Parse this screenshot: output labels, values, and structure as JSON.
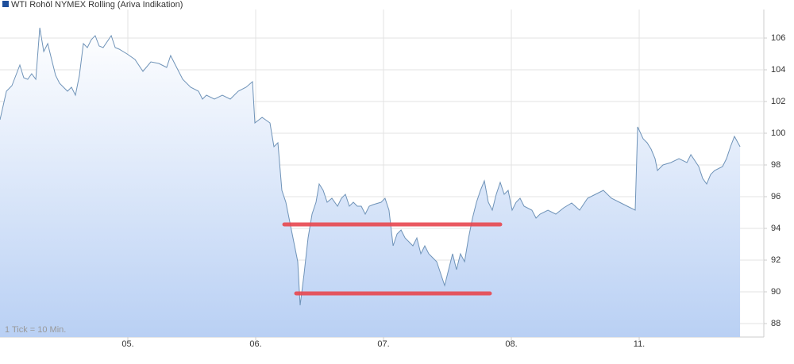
{
  "chart_data": {
    "type": "area",
    "series": [
      {
        "name": "WTI Rohöl NYMEX Rolling (Ariva Indikation)",
        "color": "#6f93b8",
        "legend_color": "#1f4f9c",
        "values": [
          100.85,
          102.65,
          103.0,
          103.65,
          104.3,
          103.5,
          103.4,
          103.75,
          103.4,
          106.65,
          105.15,
          105.65,
          104.65,
          103.65,
          103.15,
          102.9,
          102.65,
          102.9,
          102.4,
          103.65,
          105.65,
          105.4,
          105.9,
          106.15,
          105.5,
          105.4,
          106.15,
          105.4,
          105.3,
          105.0,
          104.65,
          103.9,
          104.5,
          104.4,
          104.15,
          104.9,
          104.4,
          103.4,
          102.9,
          102.65,
          102.15,
          102.4,
          102.15,
          102.4,
          102.15,
          102.65,
          102.9,
          103.25,
          100.65,
          101.0,
          100.65,
          99.15,
          99.4,
          96.4,
          95.65,
          94.4,
          93.15,
          91.9,
          89.15,
          91.15,
          93.4,
          94.9,
          95.65,
          96.8,
          96.4,
          95.65,
          95.9,
          95.4,
          95.9,
          96.15,
          95.4,
          95.65,
          95.4,
          95.4,
          94.9,
          95.4,
          95.5,
          95.65,
          95.9,
          95.15,
          92.9,
          93.65,
          93.9,
          93.4,
          93.15,
          92.9,
          93.4,
          92.4,
          92.9,
          92.4,
          92.15,
          91.9,
          91.15,
          90.4,
          91.4,
          92.4,
          91.4,
          92.4,
          91.9,
          93.4,
          94.65,
          95.65,
          96.4,
          97.0,
          95.65,
          95.15,
          96.15,
          96.9,
          96.15,
          96.4,
          95.15,
          95.65,
          95.9,
          95.4,
          95.15,
          94.65,
          94.9,
          95.15,
          94.9,
          95.3,
          95.6,
          95.15,
          95.9,
          96.15,
          96.4,
          95.9,
          95.65,
          95.4,
          95.15,
          100.4,
          99.65,
          99.4,
          99.0,
          98.4,
          97.65,
          98.0,
          98.15,
          98.4,
          98.15,
          98.65,
          97.9,
          97.15,
          96.8,
          97.4,
          97.65,
          97.9,
          98.4,
          99.15,
          99.8,
          99.15
        ]
      }
    ],
    "x": [
      0,
      0.05,
      0.093,
      0.124,
      0.155,
      0.186,
      0.217,
      0.248,
      0.28,
      0.311,
      0.342,
      0.373,
      0.404,
      0.435,
      0.466,
      0.497,
      0.528,
      0.559,
      0.59,
      0.621,
      0.652,
      0.683,
      0.714,
      0.745,
      0.776,
      0.807,
      0.87,
      0.901,
      0.932,
      0.994,
      1.056,
      1.118,
      1.18,
      1.242,
      1.304,
      1.335,
      1.366,
      1.429,
      1.491,
      1.553,
      1.584,
      1.615,
      1.677,
      1.739,
      1.801,
      1.863,
      1.925,
      1.975,
      1.994,
      2.05,
      2.112,
      2.143,
      2.174,
      2.205,
      2.236,
      2.267,
      2.298,
      2.329,
      2.348,
      2.379,
      2.41,
      2.441,
      2.472,
      2.497,
      2.528,
      2.559,
      2.596,
      2.64,
      2.671,
      2.702,
      2.733,
      2.764,
      2.795,
      2.826,
      2.857,
      2.888,
      2.919,
      2.981,
      3.012,
      3.043,
      3.075,
      3.106,
      3.137,
      3.168,
      3.199,
      3.23,
      3.261,
      3.292,
      3.323,
      3.354,
      3.385,
      3.416,
      3.447,
      3.478,
      3.509,
      3.54,
      3.571,
      3.602,
      3.634,
      3.665,
      3.696,
      3.727,
      3.758,
      3.789,
      3.82,
      3.851,
      3.882,
      3.913,
      3.944,
      3.975,
      4.006,
      4.037,
      4.068,
      4.099,
      4.161,
      4.193,
      4.224,
      4.286,
      4.348,
      4.41,
      4.472,
      4.534,
      4.596,
      4.658,
      4.72,
      4.783,
      4.845,
      4.907,
      4.969,
      4.988,
      5.031,
      5.062,
      5.093,
      5.124,
      5.143,
      5.186,
      5.248,
      5.311,
      5.373,
      5.404,
      5.466,
      5.497,
      5.528,
      5.559,
      5.59,
      5.652,
      5.683,
      5.714,
      5.745,
      5.789
    ],
    "xlim": [
      0,
      5.975
    ],
    "xticks": [
      {
        "value": 1,
        "label": "05."
      },
      {
        "value": 2,
        "label": "06."
      },
      {
        "value": 3,
        "label": "07."
      },
      {
        "value": 4,
        "label": "08."
      },
      {
        "value": 5,
        "label": "11."
      }
    ],
    "ylim": [
      87.15,
      107.8
    ],
    "yticks": [
      88,
      90,
      92,
      94,
      96,
      98,
      100,
      102,
      104,
      106
    ],
    "grid": true,
    "note": "1 Tick = 10 Min.",
    "annotations": [
      {
        "y": 94.25,
        "x": [
          2.224,
          3.913
        ],
        "color": "#e8474f"
      },
      {
        "y": 89.9,
        "x": [
          2.317,
          3.832
        ],
        "color": "#e8474f"
      }
    ]
  }
}
